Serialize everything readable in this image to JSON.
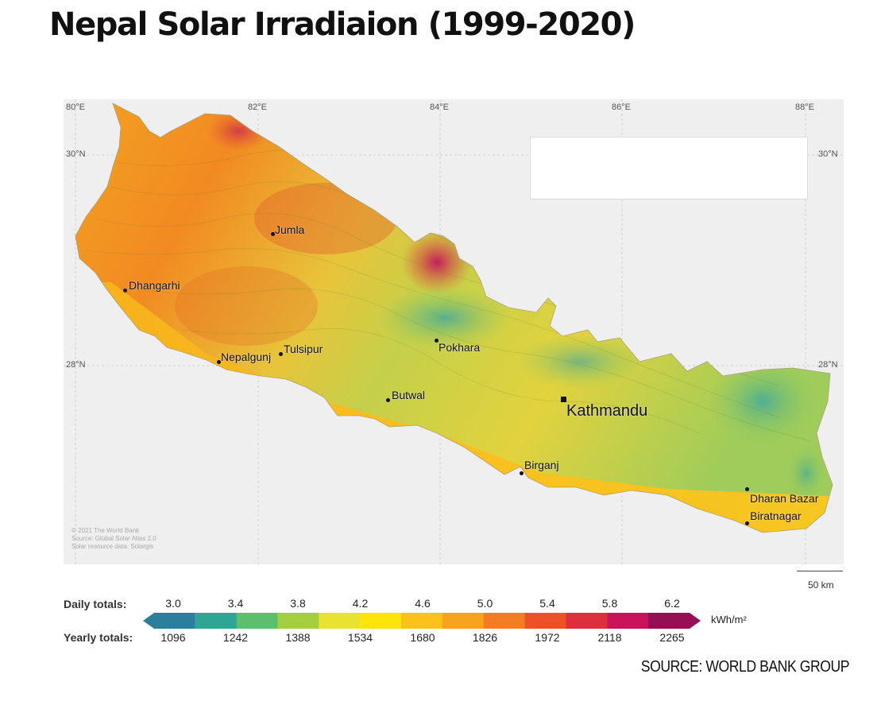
{
  "title": "Nepal Solar Irradiaion (1999-2020)",
  "source": "SOURCE: WORLD BANK GROUP",
  "map": {
    "longitude_labels": [
      "80°E",
      "82°E",
      "84°E",
      "86°E",
      "88°E"
    ],
    "latitude_labels": [
      "30°N",
      "28°N"
    ],
    "cities": [
      {
        "name": "Jumla"
      },
      {
        "name": "Dhangarhi"
      },
      {
        "name": "Nepalgunj"
      },
      {
        "name": "Tulsipur"
      },
      {
        "name": "Pokhara"
      },
      {
        "name": "Butwal"
      },
      {
        "name": "Kathmandu",
        "capital": true
      },
      {
        "name": "Birganj"
      },
      {
        "name": "Dharan Bazar"
      },
      {
        "name": "Biratnagar"
      }
    ],
    "credits": [
      "© 2021 The World Bank",
      "Source: Global Solar Atlas 2.0",
      "Solar resource data: Solargis"
    ],
    "scale_label": "50 km"
  },
  "legend": {
    "daily_label": "Daily totals:",
    "yearly_label": "Yearly totals:",
    "unit": "kWh/m²",
    "daily_values": [
      "3.0",
      "3.4",
      "3.8",
      "4.2",
      "4.6",
      "5.0",
      "5.4",
      "5.8",
      "6.2"
    ],
    "yearly_values": [
      "1096",
      "1242",
      "1388",
      "1534",
      "1680",
      "1826",
      "1972",
      "2118",
      "2265"
    ],
    "colors": [
      "#2c7f9c",
      "#2fa593",
      "#5cbf6e",
      "#a5cf3e",
      "#e8e330",
      "#fde50a",
      "#fcc21a",
      "#f9a21d",
      "#f47c22",
      "#ec5128",
      "#de2f3e",
      "#c9135a",
      "#960f55"
    ]
  }
}
